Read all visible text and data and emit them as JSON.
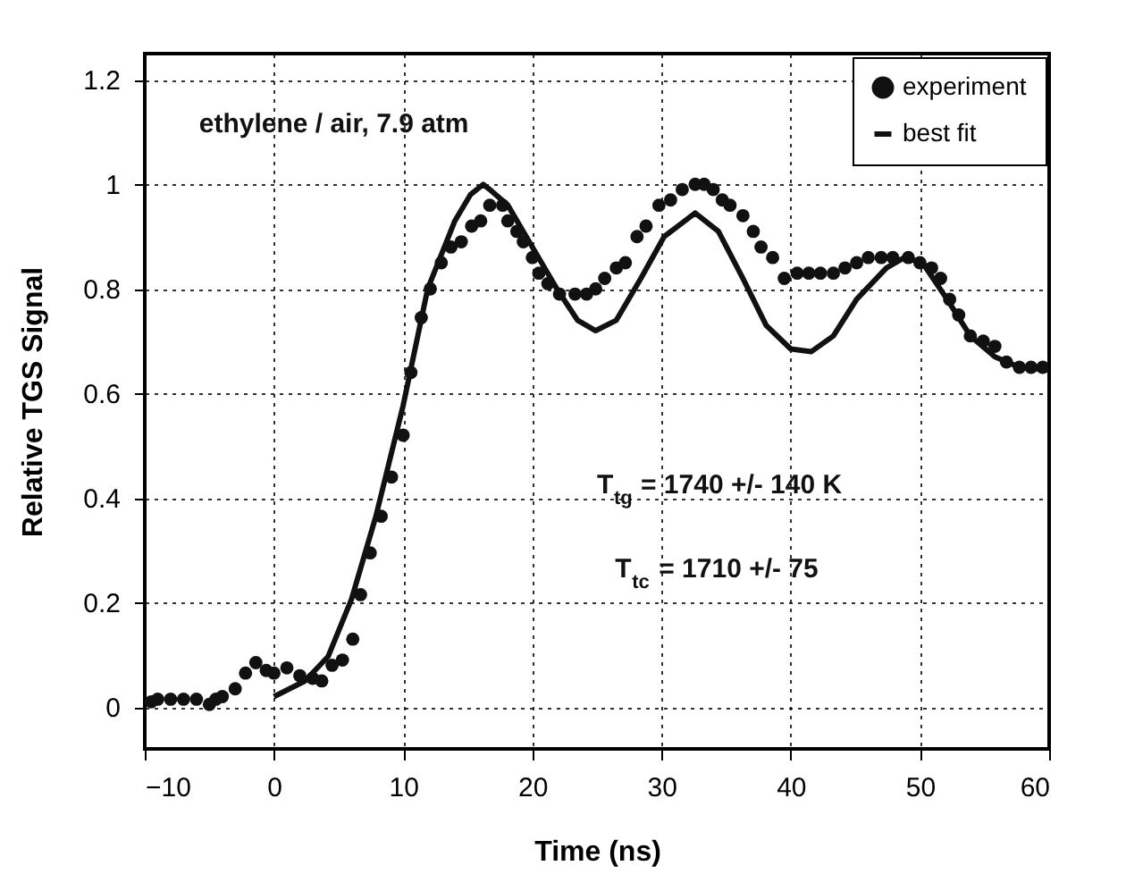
{
  "chart_data": {
    "type": "scatter",
    "xlabel": "Time    (ns)",
    "ylabel": "Relative TGS Signal",
    "xlim": [
      -10,
      60
    ],
    "xticks": [
      -10,
      0,
      10,
      20,
      30,
      40,
      50,
      60
    ],
    "ylim": [
      -0.08,
      1.25
    ],
    "yticks": [
      0,
      0.2,
      0.4,
      0.6,
      0.8,
      1,
      1.2
    ],
    "grid": true,
    "legend": "top right",
    "annotations": [
      "ethylene / air,    7.9 atm",
      "T$_{tg}$ = 1740 +/- 140 K",
      "T$_{tc}$ = 1710 +/- 75"
    ],
    "series": [
      {
        "name": "experiment",
        "marker": "circle",
        "color": "#111111",
        "x": [
          -9.5,
          -9,
          -8,
          -7,
          -6,
          -5,
          -4.5,
          -4,
          -3,
          -2.2,
          -1.4,
          -0.6,
          0,
          1,
          2,
          3,
          3.7,
          4.5,
          5.3,
          6.1,
          6.7,
          7.45,
          8.3,
          9.1,
          10,
          10.6,
          11.4,
          12.1,
          12.95,
          13.7,
          14.5,
          15.3,
          16,
          16.7,
          17.7,
          18.1,
          18.8,
          19.3,
          20,
          20.5,
          21.2,
          22.1,
          23.3,
          24.2,
          24.9,
          25.6,
          26.5,
          27.2,
          28.1,
          28.8,
          29.8,
          30.7,
          31.6,
          32.6,
          33.3,
          34,
          34.7,
          35.3,
          36.3,
          37.1,
          37.7,
          38.6,
          39.5,
          40.5,
          41.4,
          42.3,
          43.3,
          44.2,
          45.1,
          46,
          47,
          47.9,
          49.1,
          50,
          50.9,
          51.6,
          52.3,
          53,
          53.9,
          54.9,
          55.8,
          56.7,
          57.7,
          58.6,
          59.5
        ],
        "values": [
          0.01,
          0.015,
          0.015,
          0.015,
          0.015,
          0.005,
          0.015,
          0.02,
          0.035,
          0.065,
          0.085,
          0.07,
          0.065,
          0.075,
          0.06,
          0.055,
          0.05,
          0.08,
          0.09,
          0.13,
          0.215,
          0.295,
          0.365,
          0.44,
          0.52,
          0.64,
          0.745,
          0.8,
          0.85,
          0.88,
          0.89,
          0.92,
          0.93,
          0.96,
          0.96,
          0.93,
          0.91,
          0.89,
          0.86,
          0.83,
          0.81,
          0.79,
          0.79,
          0.79,
          0.8,
          0.82,
          0.84,
          0.85,
          0.9,
          0.92,
          0.96,
          0.97,
          0.99,
          1.0,
          1.0,
          0.99,
          0.97,
          0.96,
          0.94,
          0.91,
          0.88,
          0.86,
          0.82,
          0.83,
          0.83,
          0.83,
          0.83,
          0.84,
          0.85,
          0.86,
          0.86,
          0.86,
          0.86,
          0.85,
          0.84,
          0.82,
          0.78,
          0.75,
          0.71,
          0.7,
          0.69,
          0.66,
          0.65,
          0.65,
          0.65
        ]
      },
      {
        "name": "best fit",
        "type": "line",
        "line_style": "solid",
        "color": "#111111",
        "x": [
          0,
          2.4,
          4.2,
          6,
          7.9,
          10,
          11.9,
          14,
          15.2,
          16.2,
          16.7,
          18.1,
          20,
          21.9,
          23.5,
          24.9,
          26.5,
          28.4,
          30.2,
          32.6,
          34.4,
          36.3,
          38.1,
          40,
          41.6,
          43.3,
          45.1,
          47.4,
          48.8,
          50.2,
          52.1,
          53.9,
          55.8,
          57.7,
          60
        ],
        "values": [
          0.02,
          0.05,
          0.097,
          0.206,
          0.366,
          0.577,
          0.8,
          0.93,
          0.98,
          1.0,
          0.99,
          0.96,
          0.88,
          0.8,
          0.74,
          0.72,
          0.74,
          0.82,
          0.9,
          0.945,
          0.91,
          0.82,
          0.73,
          0.685,
          0.68,
          0.71,
          0.78,
          0.84,
          0.86,
          0.85,
          0.78,
          0.71,
          0.67,
          0.65,
          0.645
        ]
      }
    ]
  }
}
